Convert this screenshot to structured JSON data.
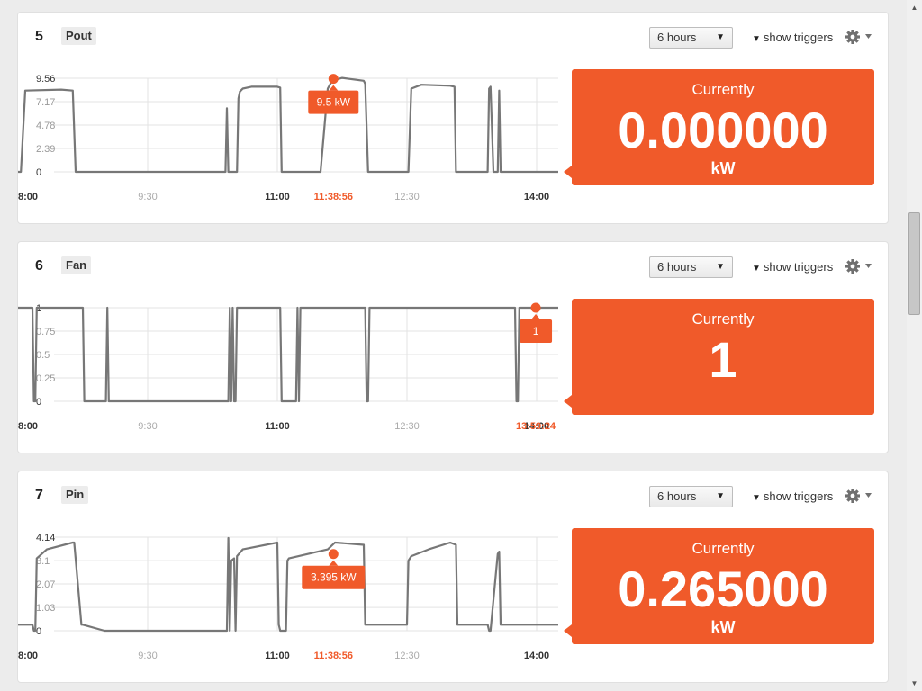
{
  "common": {
    "range_select": "6 hours",
    "show_triggers": "show triggers",
    "currently": "Currently",
    "x_ticks": [
      "8:00",
      "9:30",
      "11:00",
      "12:30",
      "14:00"
    ],
    "bold_ticks": [
      "8:00",
      "11:00",
      "14:00"
    ],
    "accent": "#f05a2a"
  },
  "widgets": [
    {
      "number": "5",
      "name": "Pout",
      "current_value": "0.000000",
      "unit": "kW",
      "tooltip": "9.5 kW",
      "marker_time": "11:38:56",
      "chart_data": {
        "type": "line",
        "y_ticks": [
          "0",
          "2.39",
          "4.78",
          "7.17",
          "9.56"
        ],
        "ylim": [
          0,
          9.56
        ],
        "xlim": [
          "8:00",
          "14:15"
        ],
        "marker": {
          "x": "11:38:56",
          "y": 9.5
        },
        "x": [
          "8:00",
          "8:02",
          "8:05",
          "8:30",
          "8:38",
          "8:40",
          "9:00",
          "9:30",
          "10:00",
          "10:24",
          "10:25",
          "10:26",
          "10:27",
          "10:30",
          "10:31",
          "10:32",
          "10:33",
          "10:34",
          "10:36",
          "10:42",
          "11:00",
          "11:02",
          "11:03",
          "11:05",
          "11:30",
          "11:35",
          "11:38",
          "11:45",
          "12:00",
          "12:01",
          "12:03",
          "12:04",
          "12:30",
          "12:31",
          "12:33",
          "12:40",
          "13:00",
          "13:03",
          "13:04",
          "13:06",
          "13:25",
          "13:26",
          "13:27",
          "13:28",
          "13:30",
          "13:33",
          "13:34",
          "13:35",
          "14:00",
          "14:15"
        ],
        "values": [
          0,
          0,
          8.3,
          8.4,
          8.3,
          0,
          0,
          0,
          0,
          0,
          6.5,
          0,
          0,
          0,
          0,
          0,
          7.5,
          8.2,
          8.5,
          8.7,
          8.7,
          8.6,
          0,
          0,
          0,
          8.5,
          9.3,
          9.6,
          9.3,
          9.0,
          0,
          0,
          0,
          0,
          8.5,
          8.9,
          8.8,
          8.7,
          0,
          0,
          0,
          0,
          8.5,
          8.7,
          0,
          0,
          8.3,
          0,
          0,
          0
        ]
      }
    },
    {
      "number": "6",
      "name": "Fan",
      "current_value": "1",
      "unit": "",
      "tooltip": "1",
      "marker_time": "13:59:24",
      "chart_data": {
        "type": "line",
        "y_ticks": [
          "0",
          "0.25",
          "0.5",
          "0.75",
          "1"
        ],
        "ylim": [
          0,
          1
        ],
        "xlim": [
          "8:00",
          "14:15"
        ],
        "marker": {
          "x": "13:59:24",
          "y": 1
        },
        "x": [
          "8:00",
          "8:10",
          "8:11",
          "8:12",
          "8:13",
          "8:14",
          "8:15",
          "8:45",
          "8:46",
          "9:00",
          "9:01",
          "9:02",
          "9:03",
          "9:04",
          "9:05",
          "10:25",
          "10:26",
          "10:27",
          "10:28",
          "10:29",
          "10:30",
          "10:31",
          "10:32",
          "10:33",
          "10:34",
          "11:02",
          "11:03",
          "11:13",
          "11:14",
          "11:15",
          "11:16",
          "11:17",
          "11:18",
          "12:00",
          "12:01",
          "12:02",
          "12:03",
          "12:04",
          "12:05",
          "13:45",
          "13:46",
          "13:47",
          "13:48",
          "13:49",
          "13:50",
          "14:15"
        ],
        "values": [
          1,
          1,
          0,
          0,
          1,
          1,
          1,
          1,
          0,
          0,
          0,
          1,
          0,
          0,
          0,
          0,
          0,
          1,
          0,
          1,
          0,
          0,
          1,
          1,
          1,
          1,
          0,
          0,
          1,
          0,
          1,
          1,
          1,
          1,
          1,
          0,
          0,
          1,
          1,
          1,
          0,
          0,
          1,
          1,
          1,
          1
        ]
      }
    },
    {
      "number": "7",
      "name": "Pin",
      "current_value": "0.265000",
      "unit": "kW",
      "tooltip": "3.395 kW",
      "marker_time": "11:38:56",
      "chart_data": {
        "type": "line",
        "y_ticks": [
          "0",
          "1.03",
          "2.07",
          "3.1",
          "4.14"
        ],
        "ylim": [
          0,
          4.14
        ],
        "xlim": [
          "8:00",
          "14:15"
        ],
        "marker": {
          "x": "11:38:56",
          "y": 3.395
        },
        "x": [
          "8:00",
          "8:10",
          "8:11",
          "8:12",
          "8:13",
          "8:20",
          "8:38",
          "8:39",
          "8:44",
          "8:45",
          "9:00",
          "9:01",
          "9:02",
          "9:30",
          "10:00",
          "10:25",
          "10:26",
          "10:27",
          "10:28",
          "10:30",
          "10:31",
          "10:32",
          "10:36",
          "11:00",
          "11:01",
          "11:02",
          "11:06",
          "11:07",
          "11:08",
          "11:35",
          "11:40",
          "12:00",
          "12:01",
          "12:02",
          "12:04",
          "12:05",
          "12:30",
          "12:31",
          "12:33",
          "12:45",
          "13:00",
          "13:04",
          "13:05",
          "13:12",
          "13:26",
          "13:27",
          "13:28",
          "13:33",
          "13:34",
          "13:35",
          "14:00",
          "14:15"
        ],
        "values": [
          0.265,
          0.265,
          0,
          0,
          3.2,
          3.6,
          3.9,
          3.9,
          0.265,
          0.265,
          0,
          0,
          0,
          0,
          0,
          0,
          4.1,
          0,
          3.1,
          3.2,
          0,
          3.3,
          3.6,
          3.9,
          0.265,
          0,
          0,
          3.1,
          3.2,
          3.6,
          3.9,
          3.8,
          0.265,
          0.265,
          0.265,
          0.265,
          0.265,
          3.1,
          3.3,
          3.6,
          3.9,
          3.8,
          0.265,
          0.265,
          0.265,
          0,
          0,
          3.4,
          3.5,
          0.265,
          0.265,
          0.265
        ]
      }
    }
  ]
}
